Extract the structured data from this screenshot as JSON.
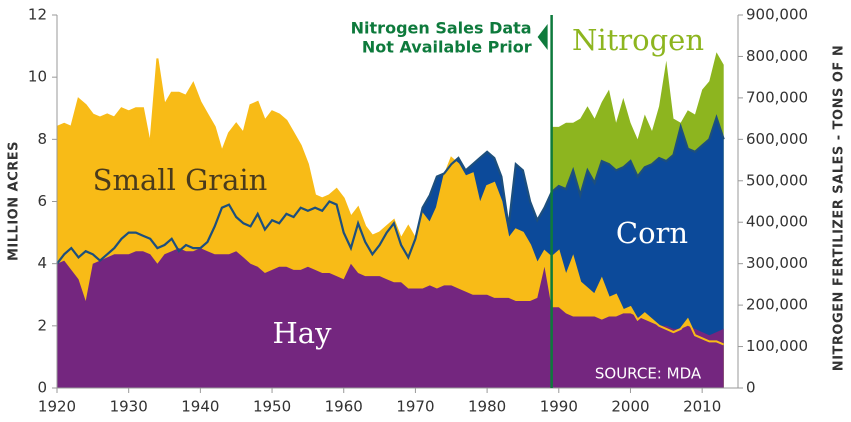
{
  "chart_data": {
    "type": "area",
    "y_label": "MILLION ACRES",
    "y2_label": "NITROGEN FERTILIZER SALES - TONS OF N",
    "x": [
      1920,
      1921,
      1922,
      1923,
      1924,
      1925,
      1926,
      1927,
      1928,
      1929,
      1930,
      1931,
      1932,
      1933,
      1934,
      1935,
      1936,
      1937,
      1938,
      1939,
      1940,
      1941,
      1942,
      1943,
      1944,
      1945,
      1946,
      1947,
      1948,
      1949,
      1950,
      1951,
      1952,
      1953,
      1954,
      1955,
      1956,
      1957,
      1958,
      1959,
      1960,
      1961,
      1962,
      1963,
      1964,
      1965,
      1966,
      1967,
      1968,
      1969,
      1970,
      1971,
      1972,
      1973,
      1974,
      1975,
      1976,
      1977,
      1978,
      1979,
      1980,
      1981,
      1982,
      1983,
      1984,
      1985,
      1986,
      1987,
      1988,
      1989,
      1990,
      1991,
      1992,
      1993,
      1994,
      1995,
      1996,
      1997,
      1998,
      1999,
      2000,
      2001,
      2002,
      2003,
      2004,
      2005,
      2006,
      2007,
      2008,
      2009,
      2010,
      2011,
      2012,
      2013
    ],
    "xlim": [
      1920,
      2015
    ],
    "xticks": [
      1920,
      1930,
      1940,
      1950,
      1960,
      1970,
      1980,
      1990,
      2000,
      2010
    ],
    "ylim": [
      0,
      12
    ],
    "yticks": [
      0,
      2,
      4,
      6,
      8,
      10,
      12
    ],
    "y2lim": [
      0,
      900000
    ],
    "y2ticks": [
      0,
      {
        "value": 100000,
        "label": "100,000"
      },
      {
        "value": 200000,
        "label": "200,000"
      },
      {
        "value": 300000,
        "label": "300,000"
      },
      {
        "value": 400000,
        "label": "400,000"
      },
      {
        "value": 500000,
        "label": "500,000"
      },
      {
        "value": 600000,
        "label": "600,000"
      },
      {
        "value": 700000,
        "label": "700,000"
      },
      {
        "value": 800000,
        "label": "800,000"
      },
      {
        "value": 900000,
        "label": "900,000"
      }
    ],
    "series": [
      {
        "name": "Nitrogen",
        "color": "#8db51f",
        "axis": "y2",
        "values": [
          null,
          null,
          null,
          null,
          null,
          null,
          null,
          null,
          null,
          null,
          null,
          null,
          null,
          null,
          null,
          null,
          null,
          null,
          null,
          null,
          null,
          null,
          null,
          null,
          null,
          null,
          null,
          null,
          null,
          null,
          null,
          null,
          null,
          null,
          null,
          null,
          null,
          null,
          null,
          null,
          null,
          null,
          null,
          null,
          null,
          null,
          null,
          null,
          null,
          null,
          null,
          null,
          null,
          null,
          null,
          null,
          null,
          null,
          null,
          null,
          null,
          null,
          null,
          null,
          null,
          null,
          null,
          null,
          null,
          630000,
          630000,
          640000,
          640000,
          650000,
          680000,
          650000,
          690000,
          720000,
          640000,
          700000,
          640000,
          600000,
          660000,
          620000,
          680000,
          790000,
          650000,
          640000,
          670000,
          660000,
          720000,
          740000,
          810000,
          780000
        ]
      },
      {
        "name": "Corn",
        "color": "#0c4a9a",
        "values": [
          4.0,
          4.3,
          4.5,
          4.2,
          4.4,
          4.3,
          4.1,
          4.3,
          4.5,
          4.8,
          5.0,
          5.0,
          4.9,
          4.8,
          4.5,
          4.6,
          4.8,
          4.4,
          4.6,
          4.5,
          4.5,
          4.7,
          5.2,
          5.8,
          5.9,
          5.5,
          5.3,
          5.2,
          5.6,
          5.1,
          5.4,
          5.3,
          5.6,
          5.5,
          5.8,
          5.7,
          5.8,
          5.7,
          6.0,
          5.9,
          5.0,
          4.5,
          5.3,
          4.7,
          4.3,
          4.6,
          5.0,
          5.3,
          4.6,
          4.2,
          4.8,
          5.8,
          6.2,
          6.8,
          6.9,
          7.2,
          7.4,
          7.0,
          7.2,
          7.4,
          7.6,
          7.4,
          6.8,
          5.2,
          7.2,
          7.0,
          6.0,
          5.4,
          5.8,
          6.3,
          6.5,
          6.4,
          7.0,
          6.2,
          7.0,
          6.6,
          7.3,
          7.2,
          7.0,
          7.1,
          7.3,
          6.8,
          7.1,
          7.2,
          7.4,
          7.3,
          7.5,
          8.4,
          7.7,
          7.6,
          7.8,
          8.0,
          8.7,
          8.0
        ]
      },
      {
        "name": "Small Grain",
        "color": "#f8bb17",
        "values": [
          8.4,
          8.5,
          8.4,
          9.3,
          9.1,
          8.8,
          8.7,
          8.8,
          8.7,
          9.0,
          8.9,
          9.0,
          9.0,
          7.8,
          10.6,
          9.1,
          9.5,
          9.5,
          9.4,
          9.8,
          9.2,
          8.8,
          8.4,
          7.6,
          8.2,
          8.5,
          8.2,
          9.1,
          9.2,
          8.6,
          8.9,
          8.8,
          8.6,
          8.2,
          7.8,
          7.2,
          6.2,
          6.1,
          6.2,
          6.4,
          6.1,
          5.5,
          5.8,
          5.2,
          4.9,
          5.0,
          5.2,
          5.4,
          4.8,
          5.2,
          4.8,
          5.6,
          5.3,
          5.8,
          6.8,
          7.4,
          7.2,
          6.8,
          6.9,
          5.9,
          6.5,
          6.6,
          6.0,
          4.8,
          5.1,
          5.0,
          4.6,
          4.0,
          4.4,
          4.2,
          4.4,
          3.6,
          4.2,
          3.4,
          3.2,
          3.0,
          3.5,
          2.9,
          3.0,
          2.5,
          2.6,
          2.2,
          2.4,
          2.2,
          2.0,
          1.9,
          1.8,
          1.9,
          2.2,
          1.7,
          1.6,
          1.5,
          1.5,
          1.4
        ]
      },
      {
        "name": "Hay",
        "color": "#74267f",
        "values": [
          4.0,
          4.1,
          3.8,
          3.5,
          2.8,
          4.0,
          4.1,
          4.2,
          4.3,
          4.3,
          4.3,
          4.4,
          4.4,
          4.3,
          4.0,
          4.3,
          4.4,
          4.5,
          4.4,
          4.4,
          4.5,
          4.4,
          4.3,
          4.3,
          4.3,
          4.4,
          4.2,
          4.0,
          3.9,
          3.7,
          3.8,
          3.9,
          3.9,
          3.8,
          3.8,
          3.9,
          3.8,
          3.7,
          3.7,
          3.6,
          3.5,
          4.0,
          3.7,
          3.6,
          3.6,
          3.6,
          3.5,
          3.4,
          3.4,
          3.2,
          3.2,
          3.2,
          3.3,
          3.2,
          3.3,
          3.3,
          3.2,
          3.1,
          3.0,
          3.0,
          3.0,
          2.9,
          2.9,
          2.9,
          2.8,
          2.8,
          2.8,
          2.9,
          3.9,
          2.6,
          2.6,
          2.4,
          2.3,
          2.3,
          2.3,
          2.3,
          2.2,
          2.3,
          2.3,
          2.4,
          2.4,
          2.3,
          2.2,
          2.1,
          2.0,
          2.0,
          1.9,
          1.9,
          2.0,
          1.9,
          1.8,
          1.7,
          1.8,
          1.9
        ]
      }
    ],
    "annotations": [
      {
        "lines": [
          "Nitrogen Sales Data",
          "Not Available Prior"
        ],
        "x": 1989,
        "color": "#0e7a3c"
      }
    ],
    "source": "SOURCE: MDA"
  }
}
